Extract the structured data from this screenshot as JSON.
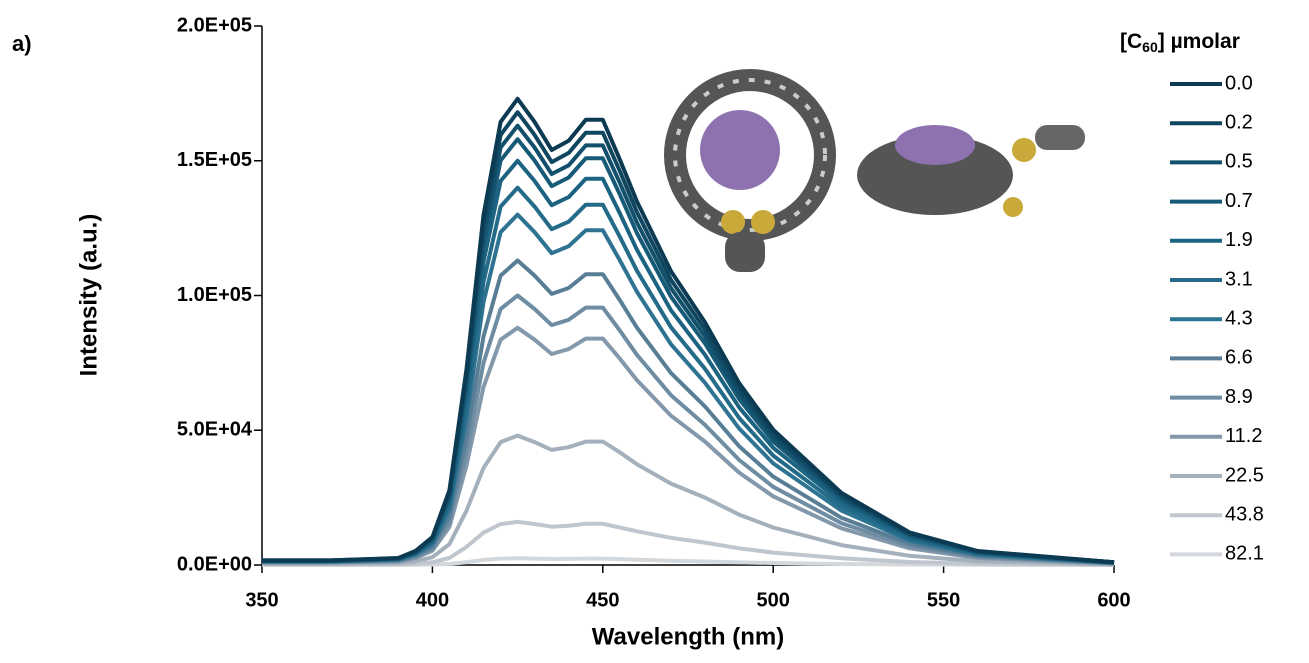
{
  "chart_data": {
    "type": "line",
    "panel_label": "a)",
    "xlabel": "Wavelength (nm)",
    "ylabel": "Intensity (a.u.)",
    "legend_title": [
      "[C",
      "60",
      "] µmolar"
    ],
    "legend": "right",
    "x": [
      350,
      370,
      390,
      395,
      400,
      405,
      410,
      415,
      420,
      425,
      430,
      435,
      440,
      445,
      450,
      455,
      460,
      470,
      480,
      490,
      500,
      520,
      540,
      560,
      600
    ],
    "xlim": [
      350,
      600
    ],
    "xticks": [
      350,
      400,
      450,
      500,
      550,
      600
    ],
    "ylim": [
      0,
      200000
    ],
    "yticks": [
      {
        "value": 0,
        "label": "0.0E+00"
      },
      {
        "value": 50000,
        "label": "5.0E+04"
      },
      {
        "value": 100000,
        "label": "1.0E+05"
      },
      {
        "value": 150000,
        "label": "1.5E+05"
      },
      {
        "value": 200000,
        "label": "2.0E+05"
      }
    ],
    "series": [
      {
        "name": "0.0",
        "color": "#0b3a52",
        "values": [
          1700,
          1700,
          2600,
          5200,
          10400,
          27700,
          72700,
          129800,
          164400,
          173000,
          164400,
          154000,
          157400,
          165200,
          165200,
          150500,
          134900,
          109000,
          90000,
          67500,
          50200,
          26800,
          12100,
          5200,
          1000
        ]
      },
      {
        "name": "0.2",
        "color": "#0f4660",
        "values": [
          1700,
          1700,
          2500,
          5000,
          10100,
          26900,
          70600,
          126000,
          159600,
          168000,
          159600,
          149500,
          152900,
          160400,
          160400,
          146200,
          131000,
          105800,
          87400,
          65500,
          48700,
          26000,
          11800,
          5000,
          1000
        ]
      },
      {
        "name": "0.5",
        "color": "#13506c",
        "values": [
          1600,
          1600,
          2400,
          4900,
          9800,
          26100,
          68500,
          122300,
          154900,
          163000,
          154900,
          145100,
          148300,
          155700,
          155700,
          141800,
          127100,
          102700,
          84800,
          63600,
          47300,
          25300,
          11400,
          4900,
          1000
        ]
      },
      {
        "name": "0.7",
        "color": "#175a77",
        "values": [
          1600,
          1600,
          2400,
          4700,
          9500,
          25300,
          66400,
          118500,
          150100,
          158000,
          150100,
          140600,
          143800,
          150900,
          150900,
          137500,
          123200,
          99500,
          82200,
          61600,
          45800,
          24500,
          11100,
          4700,
          900
        ]
      },
      {
        "name": "1.9",
        "color": "#1c6382",
        "values": [
          1500,
          1500,
          2300,
          4500,
          9000,
          24000,
          63000,
          112500,
          142500,
          150000,
          142500,
          133500,
          136500,
          143300,
          143300,
          130500,
          117000,
          94500,
          78000,
          58500,
          43500,
          23300,
          10500,
          4500,
          900
        ]
      },
      {
        "name": "3.1",
        "color": "#236b89",
        "values": [
          1400,
          1400,
          2100,
          4200,
          8400,
          22400,
          58800,
          105000,
          133000,
          140000,
          133000,
          124600,
          127400,
          133700,
          133700,
          121800,
          109200,
          88200,
          72800,
          54600,
          40600,
          21700,
          9800,
          4200,
          800
        ]
      },
      {
        "name": "4.3",
        "color": "#2e7391",
        "values": [
          1300,
          1300,
          2000,
          3900,
          7800,
          20800,
          54600,
          97500,
          123500,
          130000,
          123500,
          115700,
          118300,
          124200,
          124200,
          113100,
          101400,
          81900,
          67600,
          50700,
          37700,
          20200,
          9100,
          3900,
          800
        ]
      },
      {
        "name": "6.6",
        "color": "#587e96",
        "values": [
          1100,
          1100,
          1700,
          3400,
          6800,
          18100,
          47500,
          84800,
          107400,
          113000,
          107400,
          100600,
          102800,
          107900,
          107900,
          98300,
          88100,
          71200,
          58800,
          44100,
          32800,
          17500,
          7900,
          3400,
          700
        ]
      },
      {
        "name": "8.9",
        "color": "#6e8da3",
        "values": [
          1000,
          1000,
          1500,
          3000,
          6000,
          16000,
          42000,
          75000,
          95000,
          100000,
          95000,
          89000,
          91000,
          95500,
          95500,
          87000,
          78000,
          63000,
          52000,
          39000,
          29000,
          15500,
          7000,
          3000,
          600
        ]
      },
      {
        "name": "11.2",
        "color": "#8498ab",
        "values": [
          900,
          900,
          1300,
          2600,
          5300,
          14100,
          37000,
          66000,
          83600,
          88000,
          83600,
          78300,
          80100,
          84000,
          84000,
          76600,
          68600,
          55400,
          45800,
          34300,
          25500,
          13600,
          6200,
          2600,
          500
        ]
      },
      {
        "name": "22.5",
        "color": "#a4b0bc",
        "values": [
          500,
          500,
          700,
          1400,
          2900,
          7700,
          20200,
          36000,
          45600,
          48000,
          45600,
          42700,
          43700,
          45800,
          45800,
          41800,
          37400,
          30200,
          25000,
          18700,
          13900,
          7400,
          3400,
          1400,
          300
        ]
      },
      {
        "name": "43.8",
        "color": "#bfc6cd",
        "values": [
          200,
          200,
          200,
          500,
          1000,
          2600,
          6700,
          12000,
          15200,
          16000,
          15200,
          14200,
          14600,
          15300,
          15300,
          13900,
          12500,
          10100,
          8300,
          6200,
          4600,
          2500,
          1100,
          500,
          100
        ]
      },
      {
        "name": "82.1",
        "color": "#d3d8dc",
        "values": [
          25,
          25,
          38,
          75,
          150,
          400,
          1050,
          1875,
          2375,
          2500,
          2375,
          2225,
          2275,
          2388,
          2388,
          2175,
          1950,
          1575,
          1300,
          975,
          725,
          388,
          175,
          75,
          15
        ]
      }
    ]
  }
}
